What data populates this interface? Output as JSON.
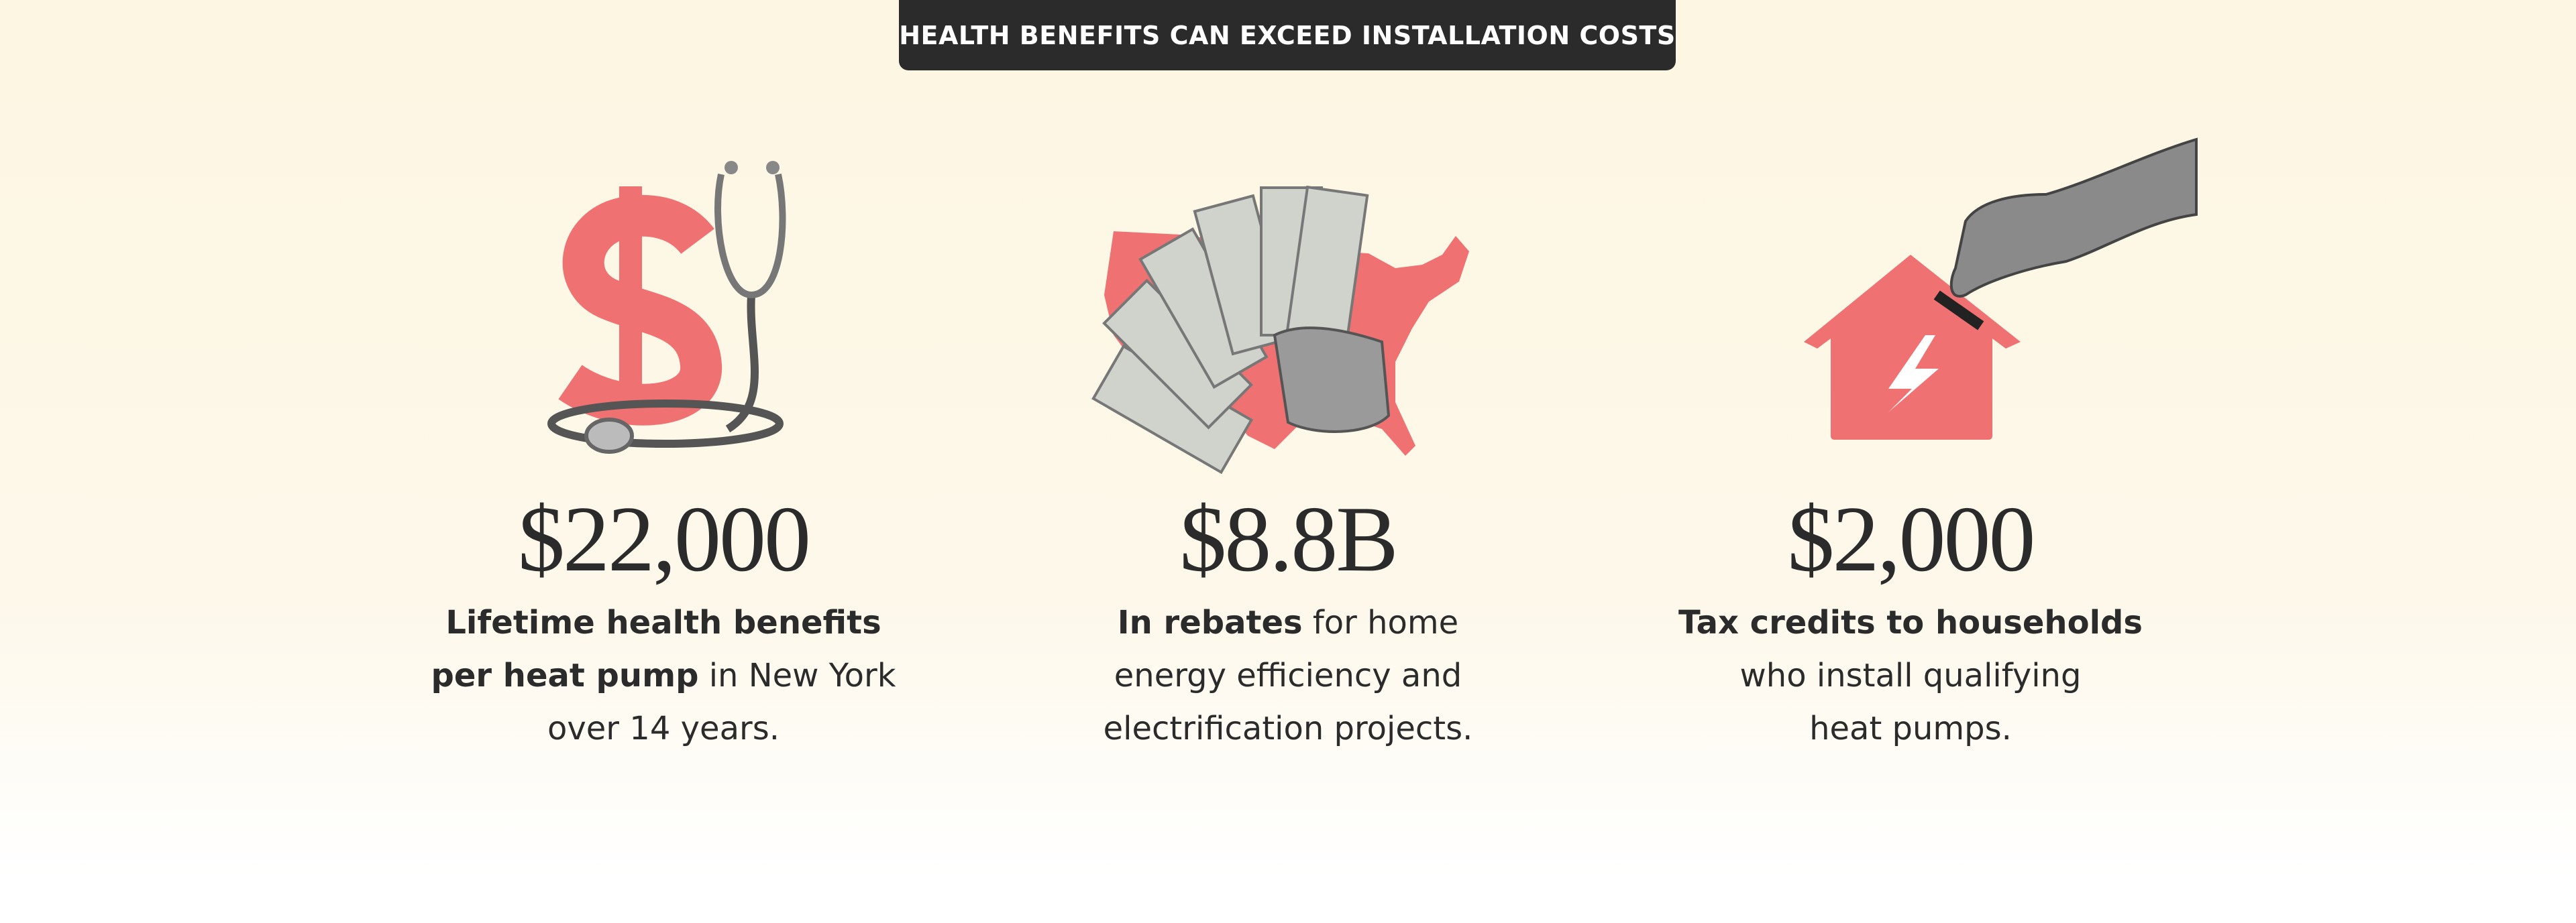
{
  "banner": "HEALTH BENEFITS CAN EXCEED INSTALLATION COSTS",
  "stats": [
    {
      "value": "$22,000",
      "lines": [
        [
          {
            "text": "Lifetime health benefits",
            "bold": true
          }
        ],
        [
          {
            "text": "per heat pump",
            "bold": true
          },
          {
            "text": "in New York",
            "bold": false
          }
        ],
        [
          {
            "text": "over 14 years.",
            "bold": false
          }
        ]
      ]
    },
    {
      "value": "$8.8B",
      "lines": [
        [
          {
            "text": "In rebates",
            "bold": true
          },
          {
            "text": "for home",
            "bold": false
          }
        ],
        [
          {
            "text": "energy efficiency and",
            "bold": false
          }
        ],
        [
          {
            "text": "electrification projects.",
            "bold": false
          }
        ]
      ]
    },
    {
      "value": "$2,000",
      "lines": [
        [
          {
            "text": "Tax credits to households",
            "bold": true
          }
        ],
        [
          {
            "text": "who install qualifying",
            "bold": false
          }
        ],
        [
          {
            "text": "heat pumps.",
            "bold": false
          }
        ]
      ]
    }
  ]
}
